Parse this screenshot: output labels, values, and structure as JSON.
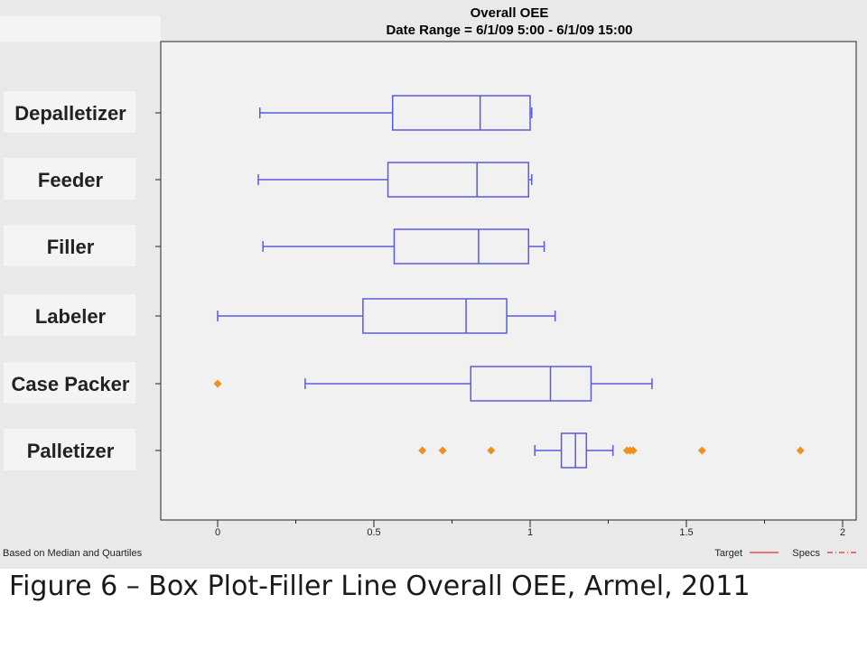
{
  "chart_data": {
    "type": "boxplot",
    "title": "Overall OEE",
    "subtitle": "Date Range = 6/1/09 5:00 - 6/1/09 15:00",
    "orientation": "horizontal",
    "xlim": [
      -0.1,
      2.05
    ],
    "x_ticks": [
      "0",
      "0.5",
      "1",
      "1.5",
      "2"
    ],
    "x_tick_values": [
      0,
      0.5,
      1,
      1.5,
      2
    ],
    "grid": false,
    "categories": [
      "Depalletizer",
      "Feeder",
      "Filler",
      "Labeler",
      "Case Packer",
      "Palletizer"
    ],
    "series": [
      {
        "category": "Depalletizer",
        "whisker_low": 0.135,
        "q1": 0.56,
        "median": 0.84,
        "q3": 1.0,
        "whisker_high": 1.005,
        "outliers": []
      },
      {
        "category": "Feeder",
        "whisker_low": 0.13,
        "q1": 0.545,
        "median": 0.83,
        "q3": 0.995,
        "whisker_high": 1.005,
        "outliers": []
      },
      {
        "category": "Filler",
        "whisker_low": 0.145,
        "q1": 0.565,
        "median": 0.835,
        "q3": 0.995,
        "whisker_high": 1.045,
        "outliers": []
      },
      {
        "category": "Labeler",
        "whisker_low": 0.0,
        "q1": 0.465,
        "median": 0.795,
        "q3": 0.925,
        "whisker_high": 1.08,
        "outliers": []
      },
      {
        "category": "Case Packer",
        "whisker_low": 0.28,
        "q1": 0.81,
        "median": 1.065,
        "q3": 1.195,
        "whisker_high": 1.39,
        "outliers": [
          0.0
        ]
      },
      {
        "category": "Palletizer",
        "whisker_low": 1.015,
        "q1": 1.1,
        "median": 1.145,
        "q3": 1.18,
        "whisker_high": 1.265,
        "outliers": [
          0.655,
          0.72,
          0.875,
          1.31,
          1.32,
          1.33,
          1.55,
          1.865
        ]
      }
    ],
    "box_color": "#5a5ade",
    "outlier_color": "#f0901c",
    "footnote": "Based on Median and Quartiles",
    "legend": {
      "placement": "bottom-right",
      "items": [
        {
          "label": "Target",
          "color": "#e03030",
          "style": "solid"
        },
        {
          "label": "Specs",
          "color": "#e03030",
          "style": "dash-dot"
        }
      ]
    }
  },
  "caption": "Figure 6 – Box Plot-Filler Line Overall OEE, Armel, 2011"
}
